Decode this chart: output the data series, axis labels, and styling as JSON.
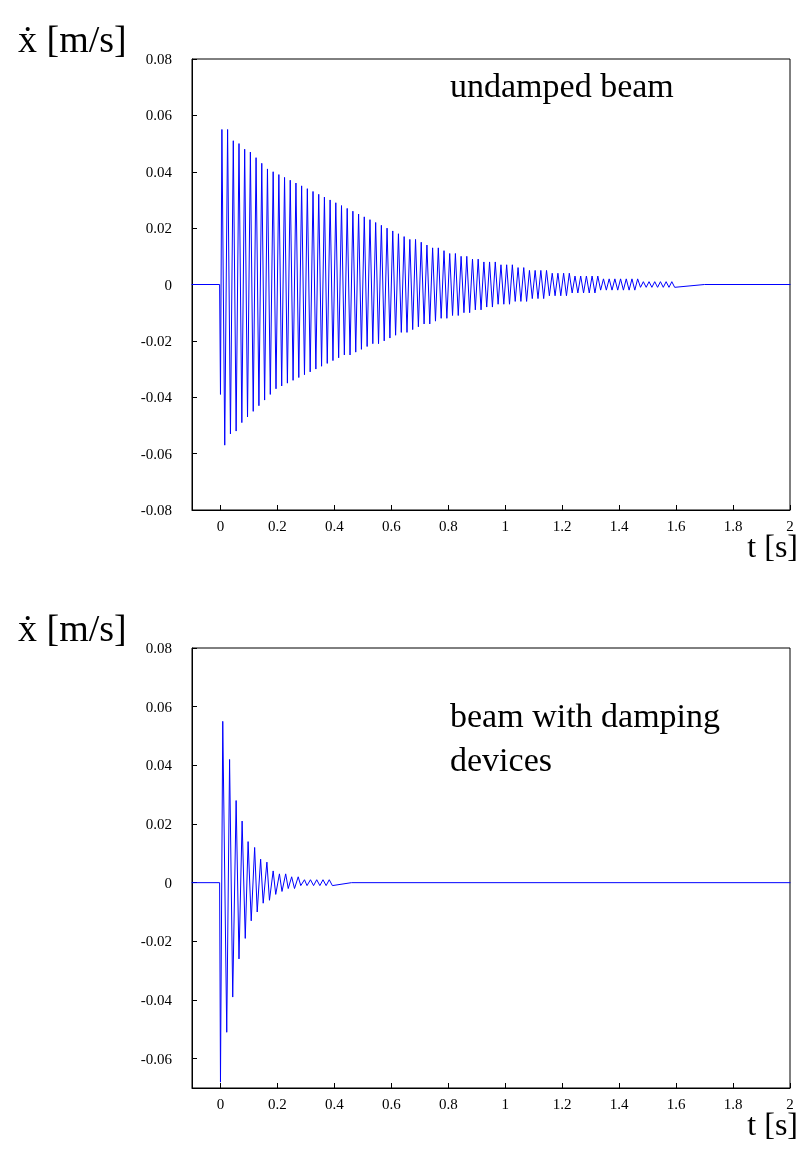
{
  "chart_data": [
    {
      "type": "line",
      "xlabel": "t [s]",
      "ylabel": "ẋ [m/s]",
      "annotations": [
        "undamped beam"
      ],
      "color": "#0000ff",
      "marker": "none",
      "grid": false,
      "xlim": [
        -0.1,
        2
      ],
      "ylim": [
        -0.08,
        0.08
      ],
      "xticks": [
        0,
        0.2,
        0.4,
        0.6,
        0.8,
        1,
        1.2,
        1.4,
        1.6,
        1.8,
        2
      ],
      "yticks": [
        -0.08,
        -0.06,
        -0.04,
        -0.02,
        0,
        0.02,
        0.04,
        0.06,
        0.08
      ],
      "x": [
        -0.1,
        -0.003,
        0,
        0.005,
        0.015,
        0.025,
        0.035,
        0.045,
        0.055,
        0.065,
        0.075,
        0.085,
        0.095,
        0.105,
        0.115,
        0.125,
        0.135,
        0.145,
        0.155,
        0.165,
        0.175,
        0.185,
        0.195,
        0.205,
        0.215,
        0.225,
        0.235,
        0.245,
        0.255,
        0.265,
        0.275,
        0.285,
        0.295,
        0.305,
        0.315,
        0.325,
        0.335,
        0.345,
        0.355,
        0.365,
        0.375,
        0.385,
        0.395,
        0.405,
        0.415,
        0.425,
        0.435,
        0.445,
        0.455,
        0.465,
        0.475,
        0.485,
        0.495,
        0.505,
        0.515,
        0.525,
        0.535,
        0.545,
        0.555,
        0.565,
        0.575,
        0.585,
        0.595,
        0.605,
        0.615,
        0.625,
        0.635,
        0.645,
        0.655,
        0.665,
        0.675,
        0.685,
        0.695,
        0.705,
        0.715,
        0.725,
        0.735,
        0.745,
        0.755,
        0.765,
        0.775,
        0.785,
        0.795,
        0.805,
        0.815,
        0.825,
        0.835,
        0.845,
        0.855,
        0.865,
        0.875,
        0.885,
        0.895,
        0.905,
        0.915,
        0.925,
        0.935,
        0.945,
        0.955,
        0.965,
        0.975,
        0.985,
        0.995,
        1.005,
        1.015,
        1.025,
        1.035,
        1.045,
        1.055,
        1.065,
        1.075,
        1.085,
        1.095,
        1.105,
        1.115,
        1.125,
        1.135,
        1.145,
        1.155,
        1.165,
        1.175,
        1.185,
        1.195,
        1.205,
        1.215,
        1.225,
        1.235,
        1.245,
        1.255,
        1.265,
        1.275,
        1.285,
        1.295,
        1.305,
        1.315,
        1.325,
        1.335,
        1.345,
        1.355,
        1.365,
        1.375,
        1.385,
        1.395,
        1.405,
        1.415,
        1.425,
        1.435,
        1.445,
        1.455,
        1.465,
        1.475,
        1.485,
        1.495,
        1.505,
        1.515,
        1.525,
        1.535,
        1.545,
        1.555,
        1.565,
        1.575,
        1.585,
        1.595,
        1.7,
        2
      ],
      "values": [
        0,
        0,
        -0.039,
        0.055,
        -0.057,
        0.055,
        -0.053,
        0.051,
        -0.052,
        0.05,
        -0.049,
        0.048,
        -0.047,
        0.047,
        -0.045,
        0.045,
        -0.043,
        0.043,
        -0.041,
        0.041,
        -0.039,
        0.04,
        -0.037,
        0.039,
        -0.036,
        0.038,
        -0.035,
        0.037,
        -0.034,
        0.036,
        -0.033,
        0.035,
        -0.032,
        0.034,
        -0.031,
        0.033,
        -0.03,
        0.032,
        -0.029,
        0.031,
        -0.028,
        0.03,
        -0.027,
        0.029,
        -0.026,
        0.028,
        -0.025,
        0.027,
        -0.025,
        0.026,
        -0.024,
        0.025,
        -0.023,
        0.024,
        -0.022,
        0.023,
        -0.021,
        0.022,
        -0.021,
        0.021,
        -0.02,
        0.02,
        -0.019,
        0.019,
        -0.018,
        0.018,
        -0.017,
        0.017,
        -0.017,
        0.016,
        -0.016,
        0.016,
        -0.015,
        0.015,
        -0.014,
        0.014,
        -0.014,
        0.013,
        -0.013,
        0.013,
        -0.012,
        0.012,
        -0.012,
        0.011,
        -0.011,
        0.011,
        -0.011,
        0.01,
        -0.01,
        0.01,
        -0.01,
        0.009,
        -0.009,
        0.009,
        -0.009,
        0.008,
        -0.008,
        0.008,
        -0.008,
        0.008,
        -0.007,
        0.007,
        -0.007,
        0.007,
        -0.007,
        0.007,
        -0.006,
        0.006,
        -0.006,
        0.006,
        -0.006,
        0.005,
        -0.005,
        0.005,
        -0.005,
        0.005,
        -0.005,
        0.005,
        -0.004,
        0.004,
        -0.004,
        0.004,
        -0.004,
        0.004,
        -0.004,
        0.004,
        -0.003,
        0.003,
        -0.003,
        0.003,
        -0.003,
        0.003,
        -0.003,
        0.003,
        -0.003,
        0.003,
        -0.002,
        0.002,
        -0.002,
        0.002,
        -0.002,
        0.002,
        -0.002,
        0.002,
        -0.002,
        0.002,
        -0.002,
        0.002,
        -0.002,
        0.002,
        -0.001,
        0.001,
        -0.001,
        0.001,
        -0.001,
        0.001,
        -0.001,
        0.001,
        -0.001,
        0.001,
        -0.001,
        0.001,
        -0.001,
        0,
        0
      ]
    },
    {
      "type": "line",
      "xlabel": "t [s]",
      "ylabel": "ẋ [m/s]",
      "annotations": [
        "beam with damping devices"
      ],
      "color": "#0000ff",
      "marker": "none",
      "grid": false,
      "xlim": [
        -0.1,
        2
      ],
      "ylim": [
        -0.07,
        0.08
      ],
      "xticks": [
        0,
        0.2,
        0.4,
        0.6,
        0.8,
        1,
        1.2,
        1.4,
        1.6,
        1.8,
        2
      ],
      "yticks": [
        -0.06,
        -0.04,
        -0.02,
        0,
        0.02,
        0.04,
        0.06,
        0.08
      ],
      "x": [
        -0.1,
        -0.003,
        0,
        0.008,
        0.022,
        0.032,
        0.043,
        0.055,
        0.065,
        0.076,
        0.087,
        0.097,
        0.108,
        0.12,
        0.129,
        0.141,
        0.15,
        0.163,
        0.172,
        0.185,
        0.194,
        0.207,
        0.216,
        0.229,
        0.238,
        0.25,
        0.26,
        0.273,
        0.282,
        0.295,
        0.304,
        0.316,
        0.327,
        0.338,
        0.349,
        0.36,
        0.371,
        0.382,
        0.393,
        0.46,
        2
      ],
      "values": [
        0,
        0,
        -0.068,
        0.055,
        -0.051,
        0.042,
        -0.039,
        0.028,
        -0.026,
        0.021,
        -0.019,
        0.014,
        -0.013,
        0.012,
        -0.01,
        0.008,
        -0.007,
        0.007,
        -0.006,
        0.004,
        -0.004,
        0.003,
        -0.003,
        0.003,
        -0.002,
        0.002,
        -0.002,
        0.002,
        -0.001,
        0.001,
        -0.001,
        0.001,
        -0.001,
        0.001,
        -0.001,
        0.001,
        -0.001,
        0.001,
        -0.001,
        0,
        0
      ]
    }
  ]
}
